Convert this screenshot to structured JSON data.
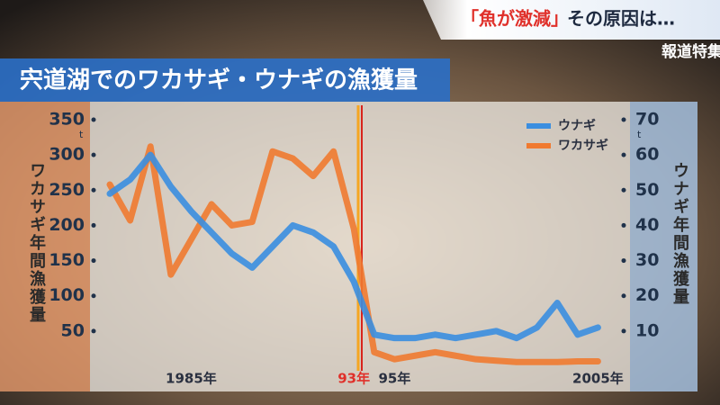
{
  "header": {
    "caption_highlight": "「魚が激減」",
    "caption_rest": "その原因は…",
    "program": "報道特集"
  },
  "chart_data": {
    "type": "line",
    "title": "宍道湖でのワカサギ・ウナギの漁獲量",
    "ylabel": "ワカサギ年間漁獲量",
    "y2label": "ウナギ年間漁獲量",
    "y_unit": "t",
    "y2_unit": "t",
    "categories": [
      null,
      null,
      null,
      null,
      "1985年",
      null,
      null,
      null,
      null,
      null,
      null,
      null,
      "93年",
      null,
      "95年",
      null,
      null,
      null,
      null,
      null,
      null,
      null,
      null,
      null,
      "2005年"
    ],
    "series": [
      {
        "name": "ウナギ",
        "color": "#3a8ee0",
        "axis": "y2",
        "values": [
          49,
          53,
          60,
          51,
          44,
          38,
          32,
          28,
          34,
          40,
          38,
          34,
          24,
          9,
          8,
          8,
          9,
          8,
          9,
          10,
          8,
          11,
          18,
          9,
          11
        ]
      },
      {
        "name": "ワカサギ",
        "color": "#f07a30",
        "values": [
          258,
          207,
          312,
          130,
          180,
          230,
          200,
          205,
          305,
          295,
          270,
          305,
          195,
          20,
          10,
          15,
          20,
          15,
          10,
          8,
          6,
          6,
          6,
          7,
          7
        ]
      }
    ],
    "ylim": [
      0,
      350
    ],
    "yticks": [
      50,
      100,
      150,
      200,
      250,
      300,
      350
    ],
    "y2lim": [
      0,
      70
    ],
    "y2ticks": [
      10,
      20,
      30,
      40,
      50,
      60,
      70
    ],
    "legend": "upper right"
  }
}
